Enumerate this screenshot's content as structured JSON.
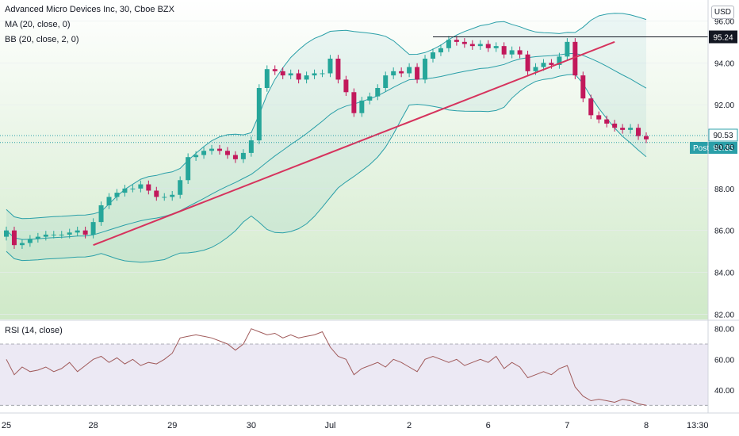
{
  "header": {
    "symbol_line": "Advanced Micro Devices Inc, 30, Cboe BZX",
    "ma_label": "MA (20, close, 0)",
    "bb_label": "BB (20, close, 2, 0)",
    "rsi_label": "RSI (14, close)",
    "currency": "USD"
  },
  "colors": {
    "up": "#26a69a",
    "down": "#c2185b",
    "band": "#2a9fa8",
    "trendline": "#d6335d",
    "rsi": "#a05a5a",
    "bg_green": "#cfe9c8",
    "rsi_bg": "#e4e0f0",
    "last_badge": "#2a9fa8",
    "level_badge": "#131722"
  },
  "chart_data": {
    "type": "candlestick",
    "title": "Advanced Micro Devices Inc, 30, Cboe BZX",
    "y_ticks": [
      "96.00",
      "94.00",
      "92.00",
      "90.00",
      "88.00",
      "86.00",
      "84.00",
      "82.00"
    ],
    "y_tick_values": [
      96,
      94,
      92,
      90,
      88,
      86,
      84,
      82
    ],
    "ylim": [
      81.75,
      97
    ],
    "x_ticks": [
      "25",
      "28",
      "29",
      "30",
      "Jul",
      "2",
      "6",
      "7",
      "8",
      "13:30"
    ],
    "x_tick_index": [
      0,
      11,
      21,
      31,
      41,
      51,
      61,
      71,
      81,
      87.5
    ],
    "bar_count": 82,
    "closes": [
      86.0,
      85.3,
      85.4,
      85.6,
      85.7,
      85.8,
      85.8,
      85.8,
      85.9,
      86.0,
      85.8,
      86.4,
      87.2,
      87.6,
      87.8,
      88.0,
      88.0,
      88.2,
      87.9,
      87.6,
      87.6,
      87.7,
      88.4,
      89.5,
      89.6,
      89.8,
      89.9,
      89.8,
      89.6,
      89.4,
      89.7,
      90.3,
      92.8,
      93.7,
      93.6,
      93.4,
      93.5,
      93.2,
      93.4,
      93.5,
      93.5,
      94.2,
      93.2,
      92.6,
      91.6,
      92.2,
      92.4,
      92.8,
      93.4,
      93.6,
      93.5,
      93.8,
      93.2,
      94.2,
      94.5,
      94.7,
      95.1,
      95.0,
      94.9,
      94.8,
      94.9,
      94.7,
      94.8,
      94.4,
      94.6,
      94.4,
      93.6,
      93.8,
      94.0,
      93.9,
      94.3,
      95.0,
      93.4,
      92.3,
      91.5,
      91.3,
      91.1,
      90.9,
      90.8,
      90.9,
      90.5,
      90.35
    ],
    "last_price": "90.53",
    "post_label": "Post",
    "post_price": "90.35",
    "level_price": "95.24",
    "level_value": 95.24,
    "trendline": {
      "start": {
        "bar": 11,
        "value": 85.3
      },
      "end": {
        "bar": 77,
        "value": 95.0
      }
    },
    "rsi": {
      "y_ticks": [
        "80.00",
        "60.00",
        "40.00"
      ],
      "y_tick_values": [
        80,
        60,
        40
      ],
      "ylim": [
        25,
        85
      ],
      "upper": 70,
      "lower": 30,
      "values": [
        60,
        50,
        55,
        52,
        53,
        55,
        52,
        54,
        58,
        52,
        56,
        60,
        62,
        58,
        61,
        57,
        60,
        56,
        58,
        57,
        60,
        64,
        74,
        75,
        76,
        75,
        74,
        72,
        70,
        66,
        70,
        80,
        78,
        76,
        77,
        74,
        76,
        74,
        75,
        76,
        78,
        68,
        62,
        60,
        50,
        54,
        56,
        58,
        55,
        60,
        58,
        55,
        52,
        60,
        62,
        60,
        58,
        60,
        56,
        58,
        60,
        58,
        62,
        54,
        58,
        55,
        48,
        50,
        52,
        50,
        54,
        56,
        42,
        36,
        33,
        34,
        33,
        32,
        34,
        33,
        31,
        30
      ]
    }
  }
}
